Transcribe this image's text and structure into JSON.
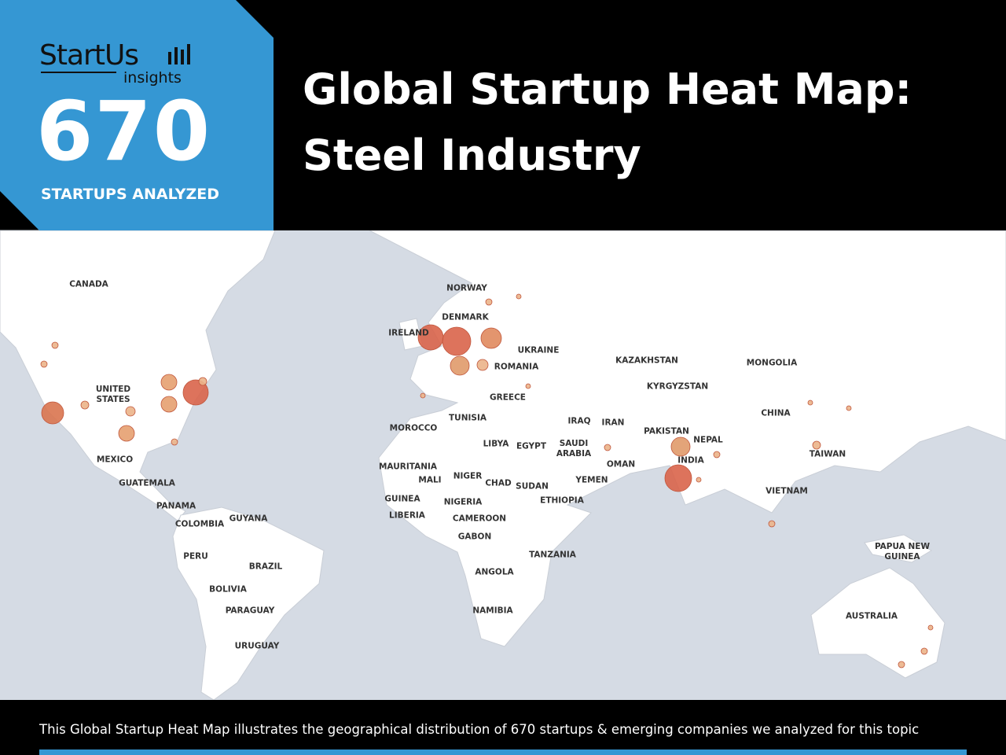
{
  "header": {
    "logo": "StartUs",
    "logo_sub": "insights",
    "count": "670",
    "count_label": "STARTUPS ANALYZED",
    "title": "Global Startup Heat Map:",
    "subtitle": "Steel Industry"
  },
  "map": {
    "labels": [
      "CANADA",
      "NORWAY",
      "DENMARK",
      "IRELAND",
      "UKRAINE",
      "ROMANIA",
      "KAZAKHSTAN",
      "MONGOLIA",
      "KYRGYZSTAN",
      "UNITED STATES",
      "GREECE",
      "TUNISIA",
      "IRAQ",
      "IRAN",
      "CHINA",
      "MOROCCO",
      "PAKISTAN",
      "NEPAL",
      "LIBYA",
      "EGYPT",
      "SAUDI ARABIA",
      "TAIWAN",
      "MEXICO",
      "INDIA",
      "OMAN",
      "MAURITANIA",
      "MALI",
      "NIGER",
      "CHAD",
      "SUDAN",
      "YEMEN",
      "GUATEMALA",
      "VIETNAM",
      "ETHIOPIA",
      "GUINEA",
      "NIGERIA",
      "PANAMA",
      "LIBERIA",
      "CAMEROON",
      "GUYANA",
      "COLOMBIA",
      "GABON",
      "PAPUA NEW GUINEA",
      "TANZANIA",
      "PERU",
      "BRAZIL",
      "ANGOLA",
      "BOLIVIA",
      "PARAGUAY",
      "NAMIBIA",
      "AUSTRALIA",
      "URUGUAY"
    ]
  },
  "footer": {
    "text": "This Global Startup Heat Map illustrates the geographical distribution of 670 startups & emerging companies we analyzed for this topic"
  }
}
